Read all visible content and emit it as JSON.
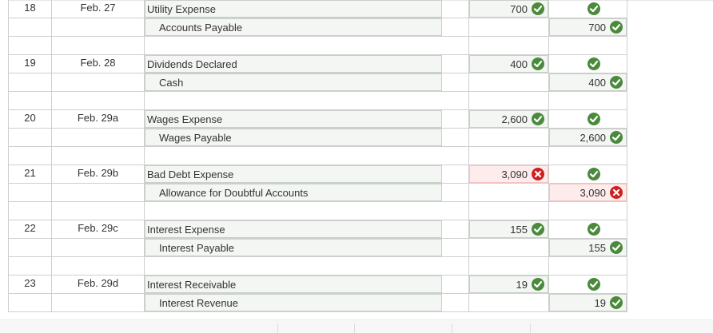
{
  "entries": [
    {
      "no": "18",
      "date": "Feb. 27",
      "debit_account": "Utility Expense",
      "credit_account": "Accounts Payable",
      "debit": "700",
      "credit": "700",
      "debit_status": "correct",
      "credit_status": "correct"
    },
    {
      "no": "19",
      "date": "Feb. 28",
      "debit_account": "Dividends Declared",
      "credit_account": "Cash",
      "debit": "400",
      "credit": "400",
      "debit_status": "correct",
      "credit_status": "correct"
    },
    {
      "no": "20",
      "date": "Feb. 29a",
      "debit_account": "Wages Expense",
      "credit_account": "Wages Payable",
      "debit": "2,600",
      "credit": "2,600",
      "debit_status": "correct",
      "credit_status": "correct"
    },
    {
      "no": "21",
      "date": "Feb. 29b",
      "debit_account": "Bad Debt Expense",
      "credit_account": "Allowance for Doubtful Accounts",
      "debit": "3,090",
      "credit": "3,090",
      "debit_status": "incorrect",
      "credit_status": "incorrect"
    },
    {
      "no": "22",
      "date": "Feb. 29c",
      "debit_account": "Interest Expense",
      "credit_account": "Interest Payable",
      "debit": "155",
      "credit": "155",
      "debit_status": "correct",
      "credit_status": "correct"
    },
    {
      "no": "23",
      "date": "Feb. 29d",
      "debit_account": "Interest Receivable",
      "credit_account": "Interest Revenue",
      "debit": "19",
      "credit": "19",
      "debit_status": "correct",
      "credit_status": "correct"
    }
  ],
  "colors": {
    "correct": "#4b8a3c",
    "incorrect": "#cc2222",
    "field_bg": "#f3f6f3",
    "error_bg": "#fdeceb",
    "border": "#cfcfcf"
  },
  "icons": {
    "correct": "check-icon",
    "incorrect": "x-icon"
  }
}
